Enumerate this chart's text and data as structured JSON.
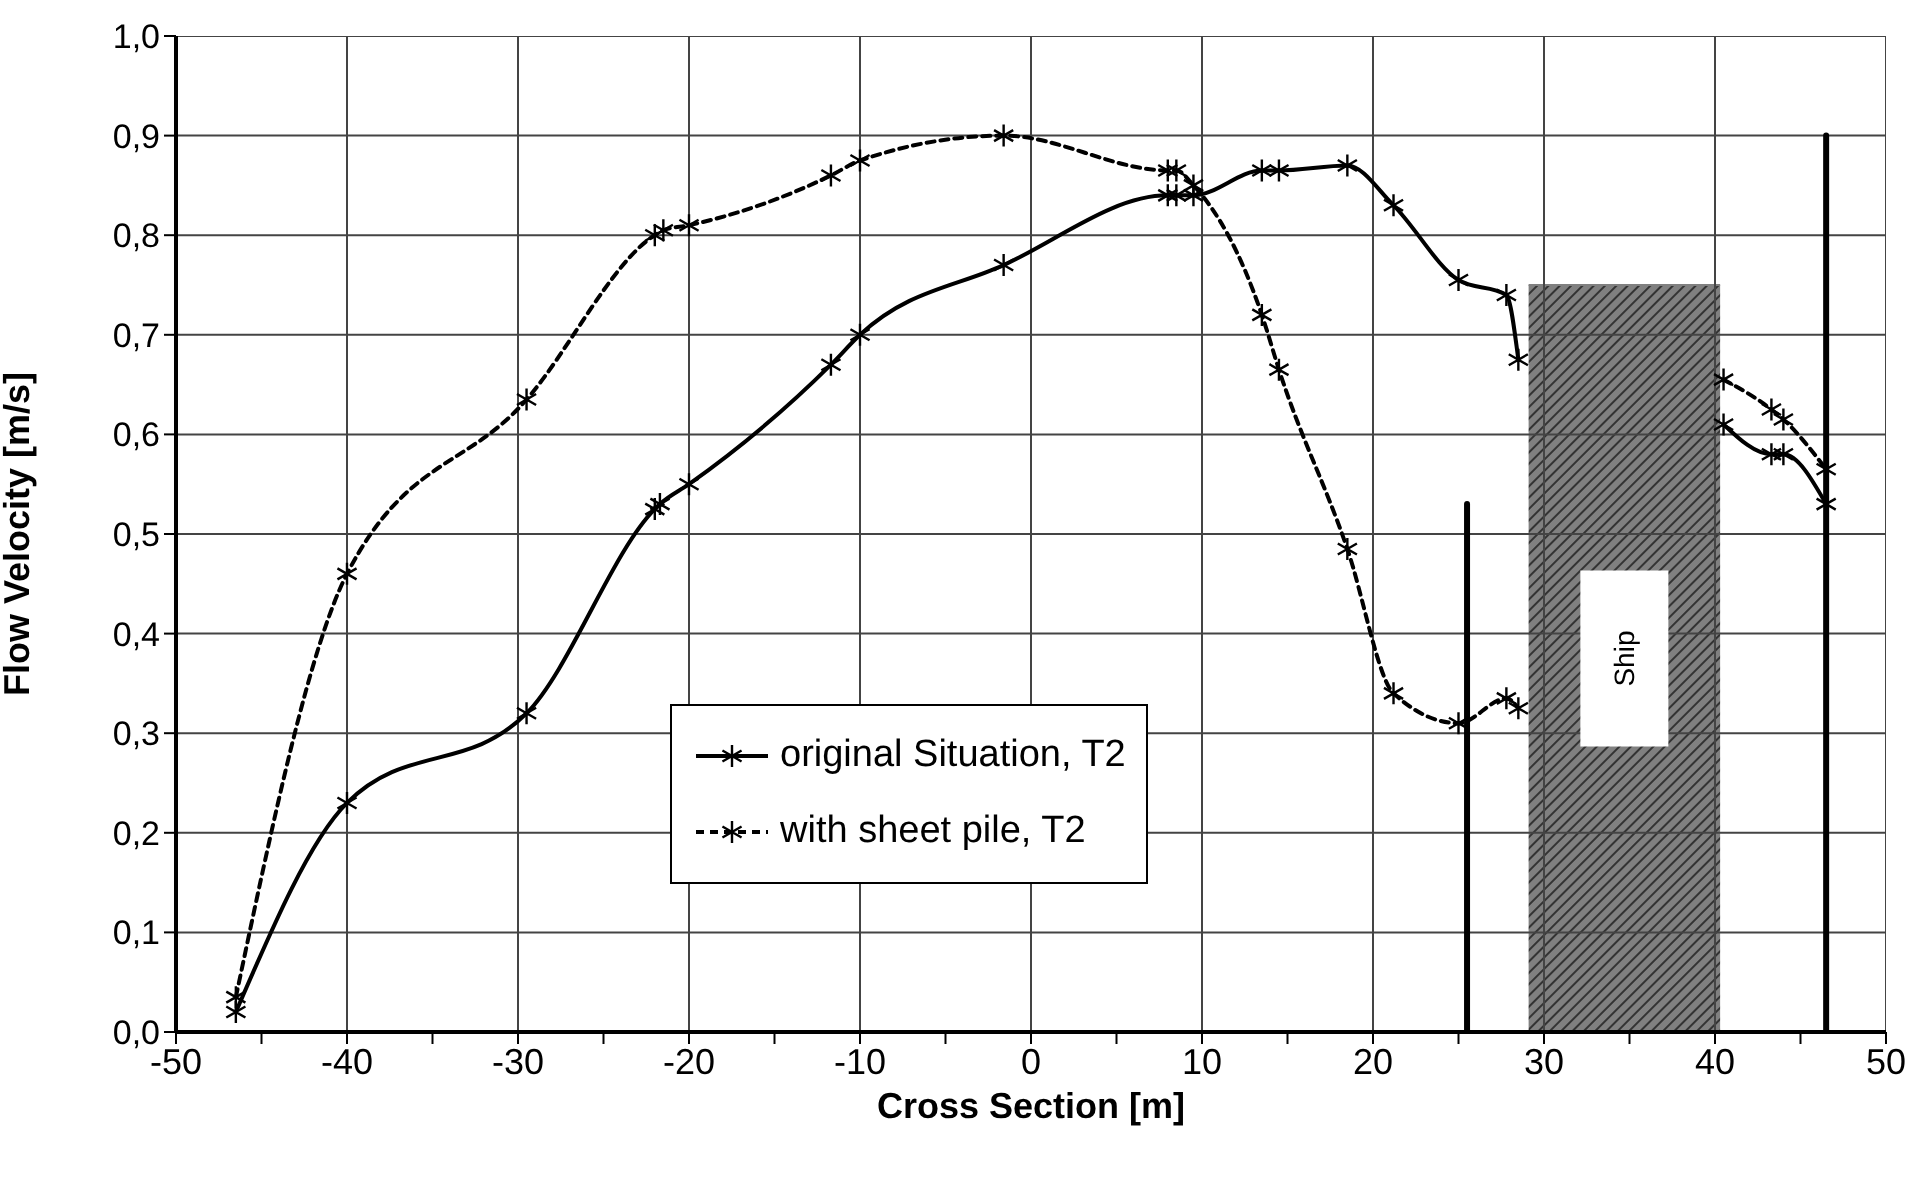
{
  "chart_data": {
    "type": "line",
    "xlabel": "Cross Section [m]",
    "ylabel": "Flow Velocity [m/s]",
    "xlim": [
      -50,
      50
    ],
    "xticks": [
      -50,
      {
        "value": -45,
        "label": null
      },
      -40,
      {
        "value": -35,
        "label": null
      },
      -30,
      {
        "value": -25,
        "label": null
      },
      -20,
      {
        "value": -15,
        "label": null
      },
      -10,
      {
        "value": -5,
        "label": null
      },
      0,
      {
        "value": 5,
        "label": null
      },
      10,
      {
        "value": 15,
        "label": null
      },
      20,
      {
        "value": 25,
        "label": null
      },
      30,
      {
        "value": 35,
        "label": null
      },
      40,
      {
        "value": 45,
        "label": null
      },
      50
    ],
    "ylim": [
      0,
      1
    ],
    "yticks": [
      {
        "value": 0,
        "label": "0,0"
      },
      {
        "value": 0.1,
        "label": "0,1"
      },
      {
        "value": 0.2,
        "label": "0,2"
      },
      {
        "value": 0.3,
        "label": "0,3"
      },
      {
        "value": 0.4,
        "label": "0,4"
      },
      {
        "value": 0.5,
        "label": "0,5"
      },
      {
        "value": 0.6,
        "label": "0,6"
      },
      {
        "value": 0.7,
        "label": "0,7"
      },
      {
        "value": 0.8,
        "label": "0,8"
      },
      {
        "value": 0.9,
        "label": "0,9"
      },
      {
        "value": 1,
        "label": "1,0"
      }
    ],
    "grid": true,
    "legend": "bottom",
    "marker": "cross",
    "annotations": [
      "Ship"
    ],
    "series": [
      {
        "name": "original Situation, T2",
        "color": "#000000",
        "line_style": "solid",
        "x": [
          -46.5,
          -40,
          -29.5,
          -22,
          -21.7,
          -20,
          -11.7,
          -10,
          -1.6,
          8,
          8.5,
          9.5,
          13.5,
          14.5,
          18.5,
          21.2,
          25,
          27.8,
          28.5,
          35,
          40.5,
          43.3,
          44,
          46.5
        ],
        "values": [
          0.02,
          0.23,
          0.32,
          0.525,
          0.53,
          0.55,
          0.67,
          0.7,
          0.77,
          0.84,
          0.84,
          0.84,
          0.865,
          0.865,
          0.87,
          0.83,
          0.755,
          0.74,
          0.675,
          null,
          0.61,
          0.58,
          0.58,
          0.53
        ]
      },
      {
        "name": "with sheet pile, T2",
        "color": "#000000",
        "line_style": "dashed",
        "x": [
          -46.5,
          -40,
          -29.5,
          -22,
          -21.5,
          -20,
          -11.7,
          -10,
          -1.6,
          8,
          8.5,
          9.5,
          13.5,
          14.5,
          18.5,
          21.2,
          25,
          27.8,
          28.5,
          35,
          40.5,
          43.3,
          44,
          46.5
        ],
        "values": [
          0.035,
          0.46,
          0.635,
          0.8,
          0.805,
          0.81,
          0.86,
          0.875,
          0.9,
          0.865,
          0.865,
          0.85,
          0.72,
          0.665,
          0.485,
          0.34,
          0.31,
          0.335,
          0.325,
          null,
          0.655,
          0.625,
          0.615,
          0.565
        ]
      },
      {
        "type": "area",
        "color": "#808080",
        "marker": "none",
        "x": [
          29.1,
          40.3
        ],
        "values": [
          0.75,
          0.75
        ]
      },
      {
        "color": "#000000",
        "marker": "none",
        "line_style": "solid",
        "x": [
          25.5,
          25.5
        ],
        "values": [
          0,
          0.53
        ]
      },
      {
        "color": "#000000",
        "marker": "none",
        "line_style": "solid",
        "x": [
          46.5,
          46.5
        ],
        "values": [
          0,
          0.9
        ]
      }
    ]
  }
}
